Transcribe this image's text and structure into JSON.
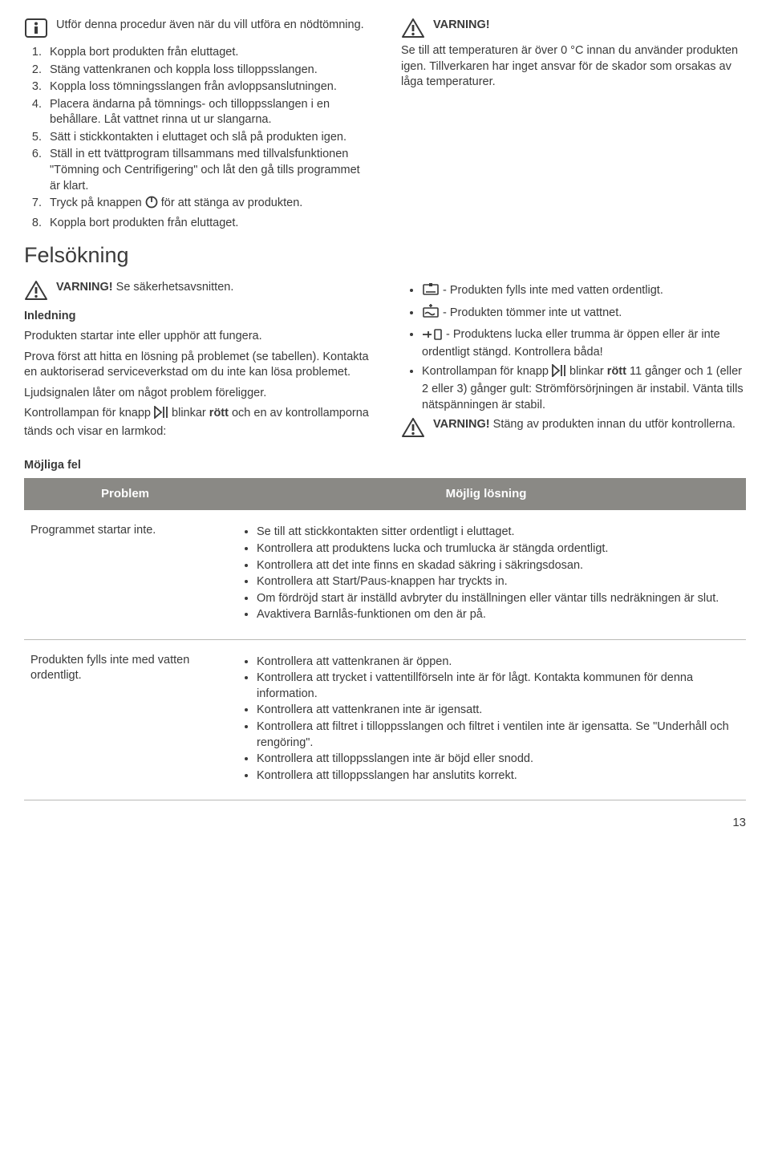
{
  "top": {
    "info_text": "Utför denna procedur även när du vill utföra en nödtömning.",
    "steps": [
      "Koppla bort produkten från eluttaget.",
      "Stäng vattenkranen och koppla loss tilloppsslangen.",
      "Koppla loss tömningsslangen från avloppsanslutningen.",
      "Placera ändarna på tömnings- och tilloppsslangen i en behållare. Låt vattnet rinna ut ur slangarna.",
      "Sätt i stickkontakten i eluttaget och slå på produkten igen.",
      "Ställ in ett tvättprogram tillsammans med tillvalsfunktionen \"Tömning och Centrifigering\" och låt den gå tills programmet är klart.",
      "__STEP7__",
      "Koppla bort produkten från eluttaget."
    ],
    "step7_a": "Tryck på knappen ",
    "step7_b": " för att stänga av produkten.",
    "warn_title": "VARNING!",
    "warn_text": "Se till att temperaturen är över 0 °C innan du använder produkten igen. Tillverkaren har inget ansvar för de skador som orsakas av låga temperaturer."
  },
  "section_title": "Felsökning",
  "trouble": {
    "warn_label": "VARNING!",
    "warn_text": " Se säkerhetsavsnitten.",
    "intro_h": "Inledning",
    "intro_p1": "Produkten startar inte eller upphör att fungera.",
    "intro_p2": "Prova först att hitta en lösning på problemet (se tabellen). Kontakta en auktoriserad serviceverkstad om du inte kan lösa problemet.",
    "intro_p3": "Ljudsignalen låter om något problem föreligger.",
    "intro_p4a": "Kontrollampan för knapp ",
    "intro_p4b": " blinkar ",
    "intro_p4c": "rött",
    "intro_p4d": " och en av kontrollamporna tänds och visar en larmkod:",
    "codes": [
      {
        "txt": " - Produkten fylls inte med vatten ordentligt."
      },
      {
        "txt": " - Produkten tömmer inte ut vattnet."
      },
      {
        "txt": " - Produktens lucka eller trumma är öppen eller är inte ordentligt stängd. Kontrollera båda!"
      }
    ],
    "code4a": "Kontrollampan för knapp ",
    "code4b": " blinkar ",
    "code4c": "rött",
    "code4d": " 11 gånger och 1 (eller 2 eller 3) gånger gult: Strömförsörjningen är instabil. Vänta tills nätspänningen är stabil.",
    "warn2a": "VARNING!",
    "warn2b": " Stäng av produkten innan du utför kontrollerna."
  },
  "table": {
    "heading": "Möjliga fel",
    "col1": "Problem",
    "col2": "Möjlig lösning",
    "rows": [
      {
        "problem": "Programmet startar inte.",
        "solutions": [
          "Se till att stickkontakten sitter ordentligt i eluttaget.",
          "Kontrollera att produktens lucka och trumlucka är stängda ordentligt.",
          "Kontrollera att det inte finns en skadad säkring i säkringsdosan.",
          "Kontrollera att Start/Paus-knappen har tryckts in.",
          "Om fördröjd start är inställd avbryter du inställningen eller väntar tills nedräkningen är slut.",
          "Avaktivera Barnlås-funktionen om den är på."
        ]
      },
      {
        "problem": "Produkten fylls inte med vatten ordentligt.",
        "solutions": [
          "Kontrollera att vattenkranen är öppen.",
          "Kontrollera att trycket i vattentillförseln inte är för lågt. Kontakta kommunen för denna information.",
          "Kontrollera att vattenkranen inte är igensatt.",
          "Kontrollera att filtret i tilloppsslangen och filtret i ventilen inte är igensatta. Se \"Underhåll och rengöring\".",
          "Kontrollera att tilloppsslangen inte är böjd eller snodd.",
          "Kontrollera att tilloppsslangen har anslutits korrekt."
        ]
      }
    ]
  },
  "page_number": "13"
}
